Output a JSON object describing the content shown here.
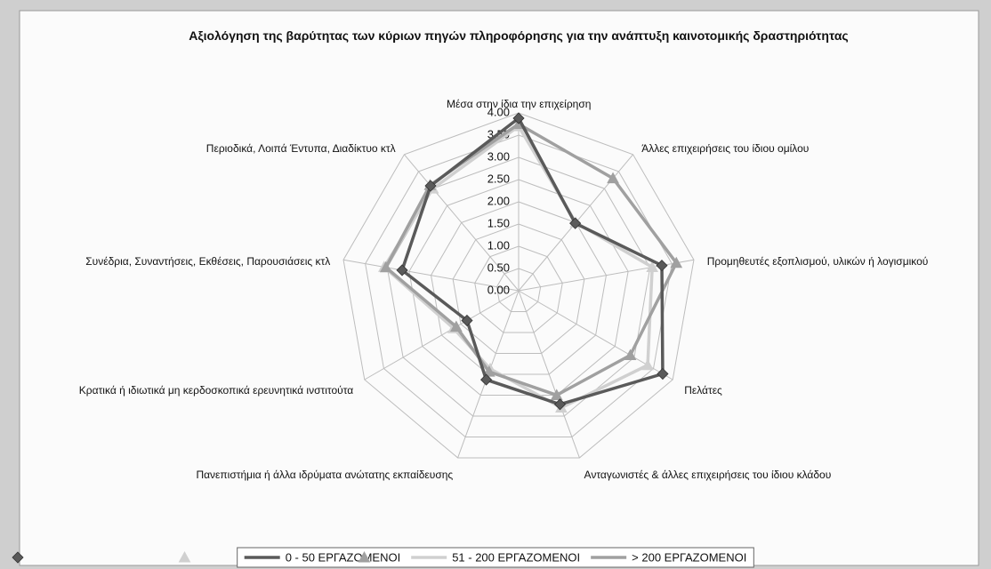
{
  "chart_data": {
    "type": "radar",
    "title": "Αξιολόγηση της βαρύτητας των κύριων πηγών πληροφόρησης για την ανάπτυξη καινοτομικής δραστηριότητας",
    "categories": [
      "Μέσα στην ίδια την επιχείρηση",
      "Άλλες επιχειρήσεις του ίδιου ομίλου",
      "Προμηθευτές εξοπλισμού, υλικών ή λογισμικού",
      "Πελάτες",
      "Ανταγωνιστές & άλλες επιχειρήσεις του ίδιου κλάδου",
      "Πανεπιστήμια ή άλλα ιδρύματα ανώτατης εκπαίδευσης",
      "Κρατικά ή ιδιωτικά μη κερδοσκοπικά ερευνητικά ινστιτούτα",
      "Συνέδρια, Συναντήσεις, Εκθέσεις, Παρουσιάσεις κτλ",
      "Περιοδικά, Λοιπά Έντυπα, Διαδίκτυο κτλ"
    ],
    "series": [
      {
        "name": "0 - 50 ΕΡΓΑΖΟΜΕΝΟΙ",
        "color": "#5a5a5a",
        "marker": "diamond",
        "values": [
          3.88,
          1.98,
          3.27,
          3.74,
          2.72,
          2.13,
          1.34,
          2.66,
          3.08
        ]
      },
      {
        "name": "51 - 200 ΕΡΓΑΖΟΜΕΝΟΙ",
        "color": "#d0d0d0",
        "marker": "triangle",
        "values": [
          3.7,
          2.0,
          3.05,
          3.35,
          2.8,
          1.87,
          1.69,
          3.07,
          3.0
        ]
      },
      {
        "name": "> 200 ΕΡΓΑΖΟΜΕΝΟΙ",
        "color": "#a0a0a0",
        "marker": "triangle",
        "values": [
          3.75,
          3.3,
          3.6,
          2.9,
          2.5,
          1.94,
          1.62,
          3.03,
          3.1
        ]
      }
    ],
    "ylim": [
      0,
      4
    ],
    "yticks": [
      {
        "value": 0,
        "label": "0.00"
      },
      {
        "value": 0.5,
        "label": "0.50"
      },
      {
        "value": 1,
        "label": "1.00"
      },
      {
        "value": 1.5,
        "label": "1.50"
      },
      {
        "value": 2,
        "label": "2.00"
      },
      {
        "value": 2.5,
        "label": "2.50"
      },
      {
        "value": 3,
        "label": "3.00"
      },
      {
        "value": 3.5,
        "label": "3.50"
      },
      {
        "value": 4,
        "label": "4.00"
      }
    ],
    "grid": true,
    "legend": "bottom"
  }
}
